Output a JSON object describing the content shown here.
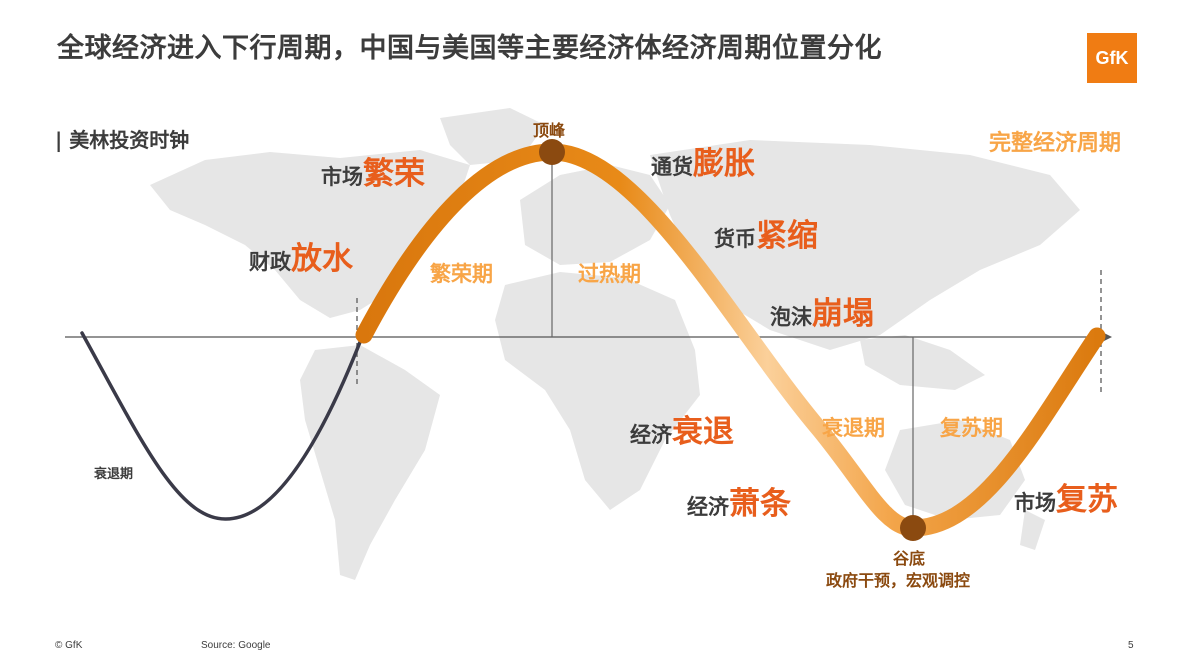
{
  "header": {
    "title": "全球经济进入下行周期，中国与美国等主要经济体经济周期位置分化",
    "logo_text": "GfK",
    "subtitle": "| 美林投资时钟"
  },
  "labels": {
    "fiscal_pre": "财政",
    "fiscal_em": "放水",
    "market_pre": "市场",
    "market_em": "繁荣",
    "inflation_pre": "通货",
    "inflation_em": "膨胀",
    "money_pre": "货币",
    "money_em": "紧缩",
    "bubble_pre": "泡沫",
    "bubble_em": "崩塌",
    "recess_pre": "经济",
    "recess_em": "衰退",
    "depress_pre": "经济",
    "depress_em": "萧条",
    "recover_pre": "市场",
    "recover_em": "复苏"
  },
  "phases": {
    "prosperity": "繁荣期",
    "overheat": "过热期",
    "recession": "衰退期",
    "recovery": "复苏期",
    "left_recession": "衰退期"
  },
  "points": {
    "peak": "顶峰",
    "trough": "谷底",
    "trough_note": "政府干预，宏观调控"
  },
  "full_cycle": "完整经济周期",
  "footer": {
    "copyright": "© GfK",
    "source": "Source: Google",
    "page_number": "5"
  },
  "colors": {
    "accent_orange": "#e85e1c",
    "phase_orange": "#f8a547",
    "curve_orange": "#e07d10",
    "map_grey": "#e6e6e6",
    "text_dark": "#3c3c3c"
  }
}
